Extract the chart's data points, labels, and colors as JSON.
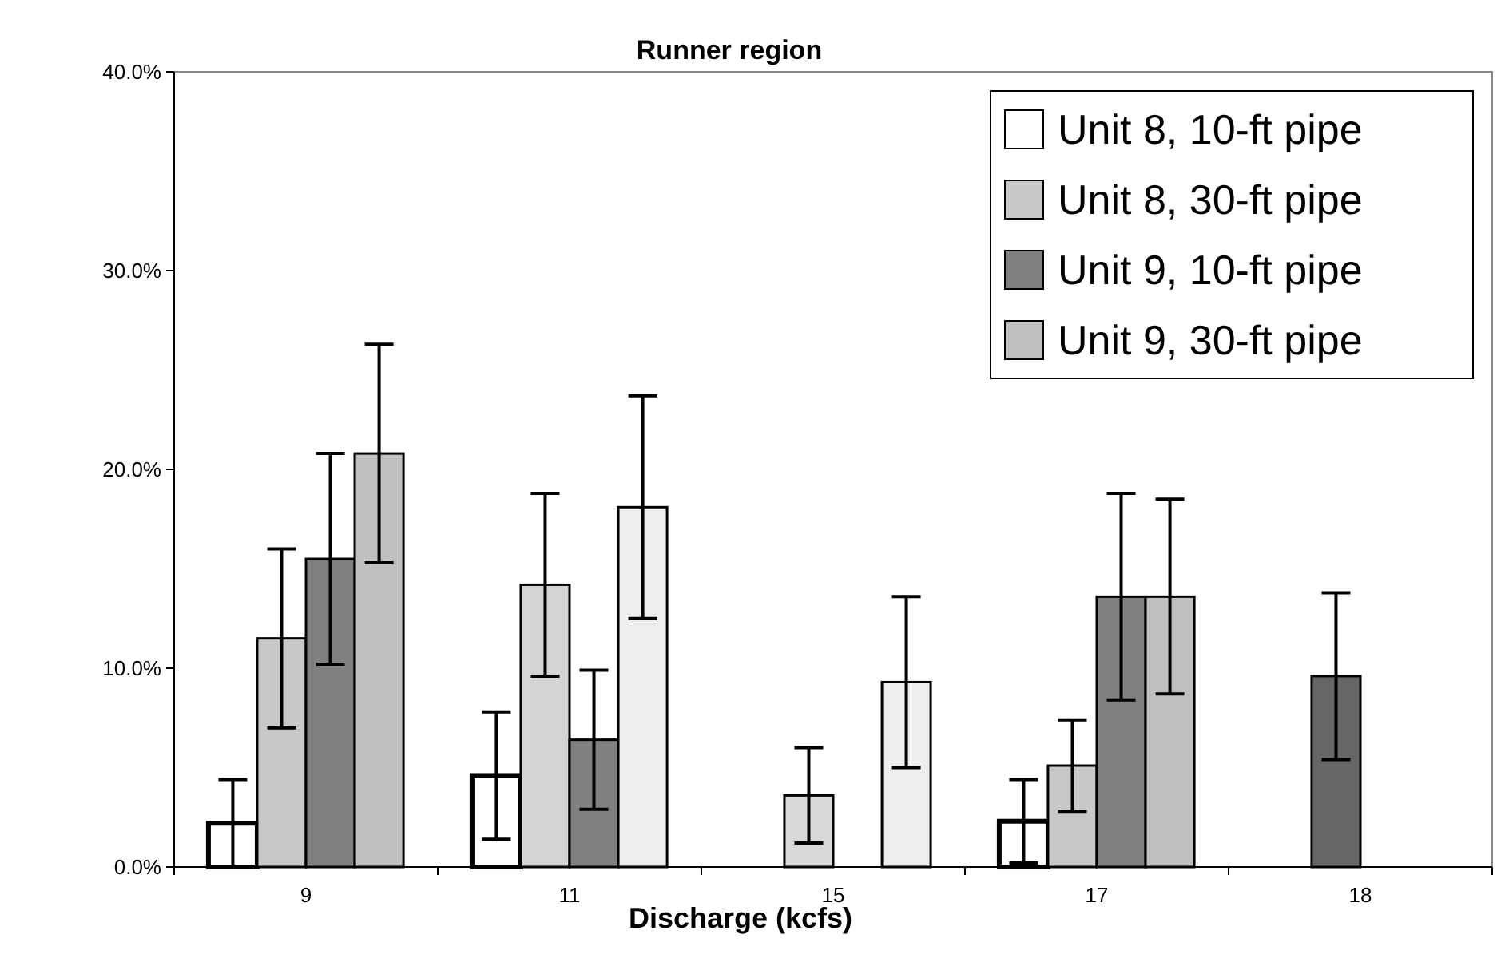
{
  "chart_data": {
    "type": "bar",
    "title": "Runner region",
    "xlabel": "Discharge (kcfs)",
    "categories": [
      "9",
      "11",
      "15",
      "17",
      "18"
    ],
    "series": [
      {
        "name": "Unit 8, 10-ft pipe",
        "color": "#ffffff",
        "values": [
          2.2,
          4.6,
          0,
          2.3,
          0
        ],
        "errors": [
          2.2,
          3.2,
          null,
          2.1,
          null
        ]
      },
      {
        "name": "Unit 8, 30-ft pipe",
        "color": "#c8c8c8",
        "colors": [
          "#c8c8c8",
          "#d4d4d4",
          "#d9d9d9",
          "#c8c8c8",
          "#666666"
        ],
        "values": [
          11.5,
          14.2,
          3.6,
          5.1,
          9.6
        ],
        "errors": [
          4.5,
          4.6,
          2.4,
          2.3,
          4.2
        ]
      },
      {
        "name": "Unit 9, 10-ft pipe",
        "color": "#808080",
        "values": [
          15.5,
          6.4,
          0,
          13.6,
          null
        ],
        "errors": [
          5.3,
          3.5,
          null,
          5.2,
          null
        ]
      },
      {
        "name": "Unit 9, 30-ft pipe",
        "color": "#c0c0c0",
        "colors": [
          "#c0c0c0",
          "#eeeeee",
          "#eeeeee",
          "#c0c0c0",
          null
        ],
        "values": [
          20.8,
          18.1,
          9.3,
          13.6,
          null
        ],
        "errors": [
          5.5,
          5.6,
          4.3,
          4.9,
          null
        ]
      }
    ],
    "ylim": [
      0,
      40
    ],
    "yticks": [
      {
        "value": 0,
        "label": "0.0%"
      },
      {
        "value": 10,
        "label": "10.0%"
      },
      {
        "value": 20,
        "label": "20.0%"
      },
      {
        "value": 30,
        "label": "30.0%"
      },
      {
        "value": 40,
        "label": "40.0%"
      }
    ],
    "grid": false,
    "legend": "top right"
  }
}
